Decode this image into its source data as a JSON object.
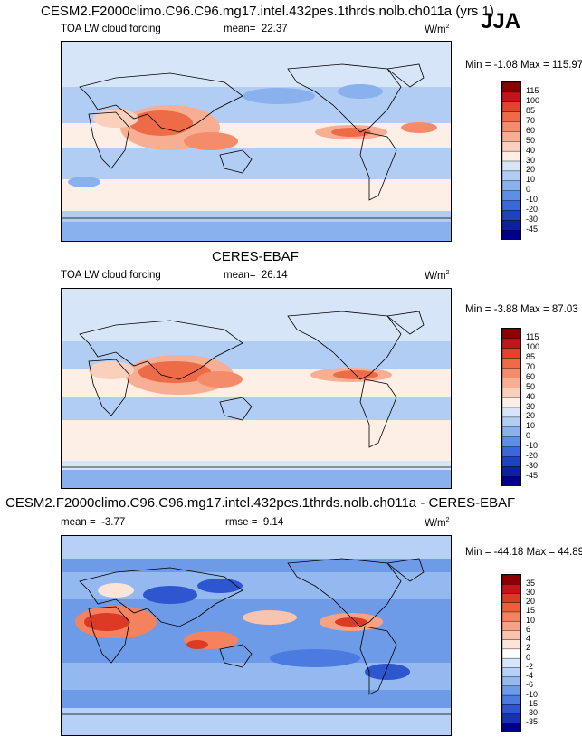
{
  "season": "JJA",
  "panels": [
    {
      "title": "CESM2.F2000climo.C96.C96.mg17.intel.432pes.1thrds.nolb.ch011a (yrs 1)",
      "variable": "TOA LW cloud forcing",
      "mean_label": "mean=",
      "mean": "22.37",
      "units": "W/m",
      "units_exp": "2",
      "minmax": "Min =  -1.08 Max = 115.97",
      "levels": [
        "115",
        "100",
        "85",
        "70",
        "60",
        "50",
        "40",
        "30",
        "20",
        "10",
        "0",
        "-10",
        "-20",
        "-30",
        "-45"
      ],
      "colors": [
        "#8b0000",
        "#c4141b",
        "#e0442a",
        "#ee6b47",
        "#f48c6b",
        "#f7ae92",
        "#fad0bd",
        "#fdeee6",
        "#d6e5f8",
        "#b2cdf4",
        "#88b1ee",
        "#5d8fe4",
        "#3a68d8",
        "#1f42c2",
        "#0b22a0",
        "#00008b"
      ]
    },
    {
      "title": "CERES-EBAF",
      "variable": "TOA LW cloud forcing",
      "mean_label": "mean=",
      "mean": "26.14",
      "units": "W/m",
      "units_exp": "2",
      "minmax": "Min =  -3.88 Max =  87.03",
      "levels": [
        "115",
        "100",
        "85",
        "70",
        "60",
        "50",
        "40",
        "30",
        "20",
        "10",
        "0",
        "-10",
        "-20",
        "-30",
        "-45"
      ],
      "colors": [
        "#8b0000",
        "#c4141b",
        "#e0442a",
        "#ee6b47",
        "#f48c6b",
        "#f7ae92",
        "#fad0bd",
        "#fdeee6",
        "#d6e5f8",
        "#b2cdf4",
        "#88b1ee",
        "#5d8fe4",
        "#3a68d8",
        "#1f42c2",
        "#0b22a0",
        "#00008b"
      ]
    },
    {
      "title": "CESM2.F2000climo.C96.C96.mg17.intel.432pes.1thrds.nolb.ch011a - CERES-EBAF",
      "variable": "",
      "mean_label": "mean =",
      "mean": "-3.77",
      "rmse_label": "rmse =",
      "rmse": "9.14",
      "units": "W/m",
      "units_exp": "2",
      "minmax": "Min = -44.18 Max =  44.89",
      "levels": [
        "35",
        "30",
        "20",
        "15",
        "10",
        "6",
        "4",
        "2",
        "0",
        "-2",
        "-4",
        "-6",
        "-10",
        "-15",
        "-30",
        "-35"
      ],
      "colors": [
        "#8b0000",
        "#c4141b",
        "#dc3a24",
        "#eb5f3e",
        "#f4825f",
        "#f7a284",
        "#fac3ad",
        "#fde4d9",
        "#ffffff",
        "#d8e6f9",
        "#b7d0f5",
        "#94b8f0",
        "#6d9be8",
        "#4b7be0",
        "#2e56cf",
        "#1733b4",
        "#00008b"
      ]
    }
  ]
}
